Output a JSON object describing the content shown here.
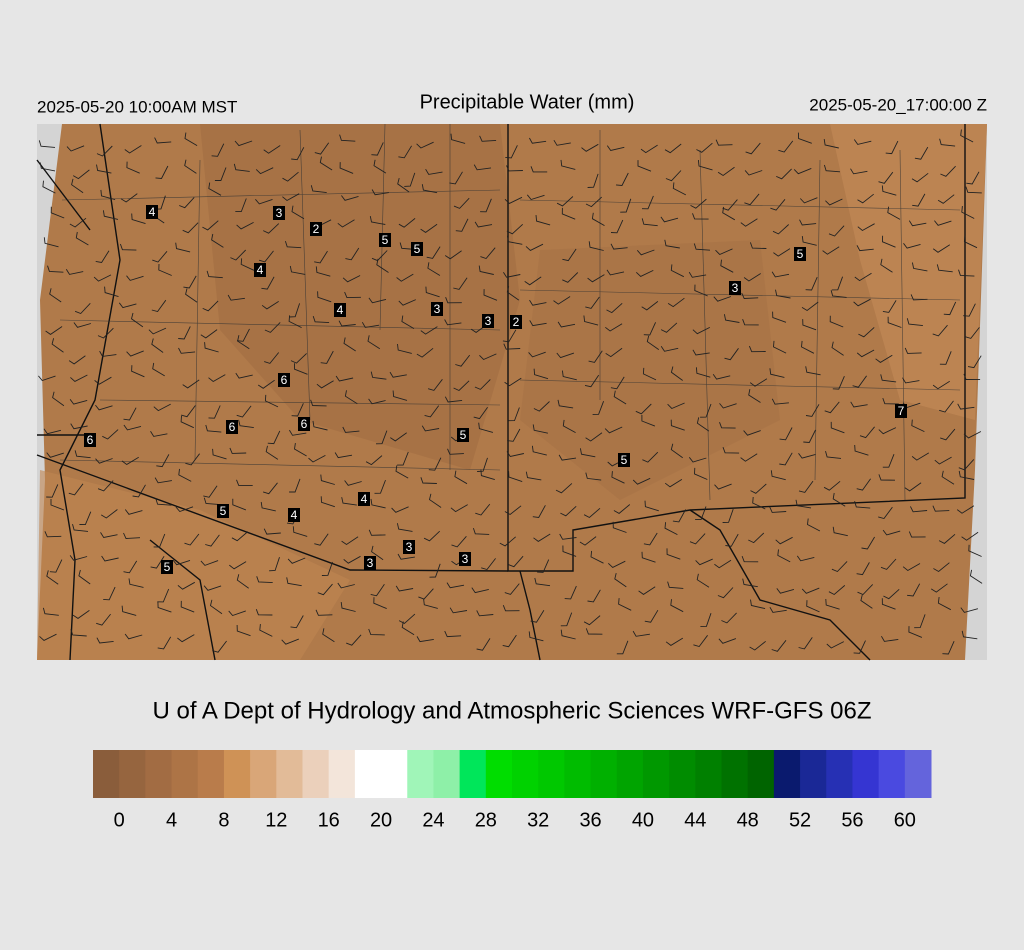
{
  "header": {
    "valid_local": "2025-05-20 10:00AM MST",
    "title": "Precipitable Water (mm)",
    "valid_utc": "2025-05-20_17:00:00 Z"
  },
  "map": {
    "station_labels": [
      4,
      3,
      2,
      5,
      5,
      4,
      4,
      3,
      3,
      2,
      5,
      3,
      6,
      6,
      6,
      5,
      6,
      7,
      5,
      4,
      5,
      4,
      3,
      3,
      3,
      5
    ]
  },
  "credit": "U of A Dept of Hydrology and Atmospheric Sciences WRF-GFS 06Z",
  "colorbar": {
    "lim": [
      -2,
      62
    ],
    "colors": [
      "#8a5d3b",
      "#96653f",
      "#a26c43",
      "#ad7446",
      "#b97c4b",
      "#cf9256",
      "#d9a678",
      "#e2bb98",
      "#ebd0bb",
      "#f3e5da",
      "#ffffff",
      "#ffffff",
      "#a0f5b8",
      "#8ef0a8",
      "#00e65a",
      "#00dd00",
      "#00d200",
      "#00c800",
      "#00bc00",
      "#00b000",
      "#00a400",
      "#009800",
      "#008c00",
      "#008000",
      "#007200",
      "#006400",
      "#0a1a6e",
      "#1a2896",
      "#2630b4",
      "#3535d2",
      "#4a4ae0",
      "#6464dc"
    ],
    "ticks": [
      0,
      4,
      8,
      12,
      16,
      20,
      24,
      28,
      32,
      36,
      40,
      44,
      48,
      52,
      56,
      60
    ]
  }
}
